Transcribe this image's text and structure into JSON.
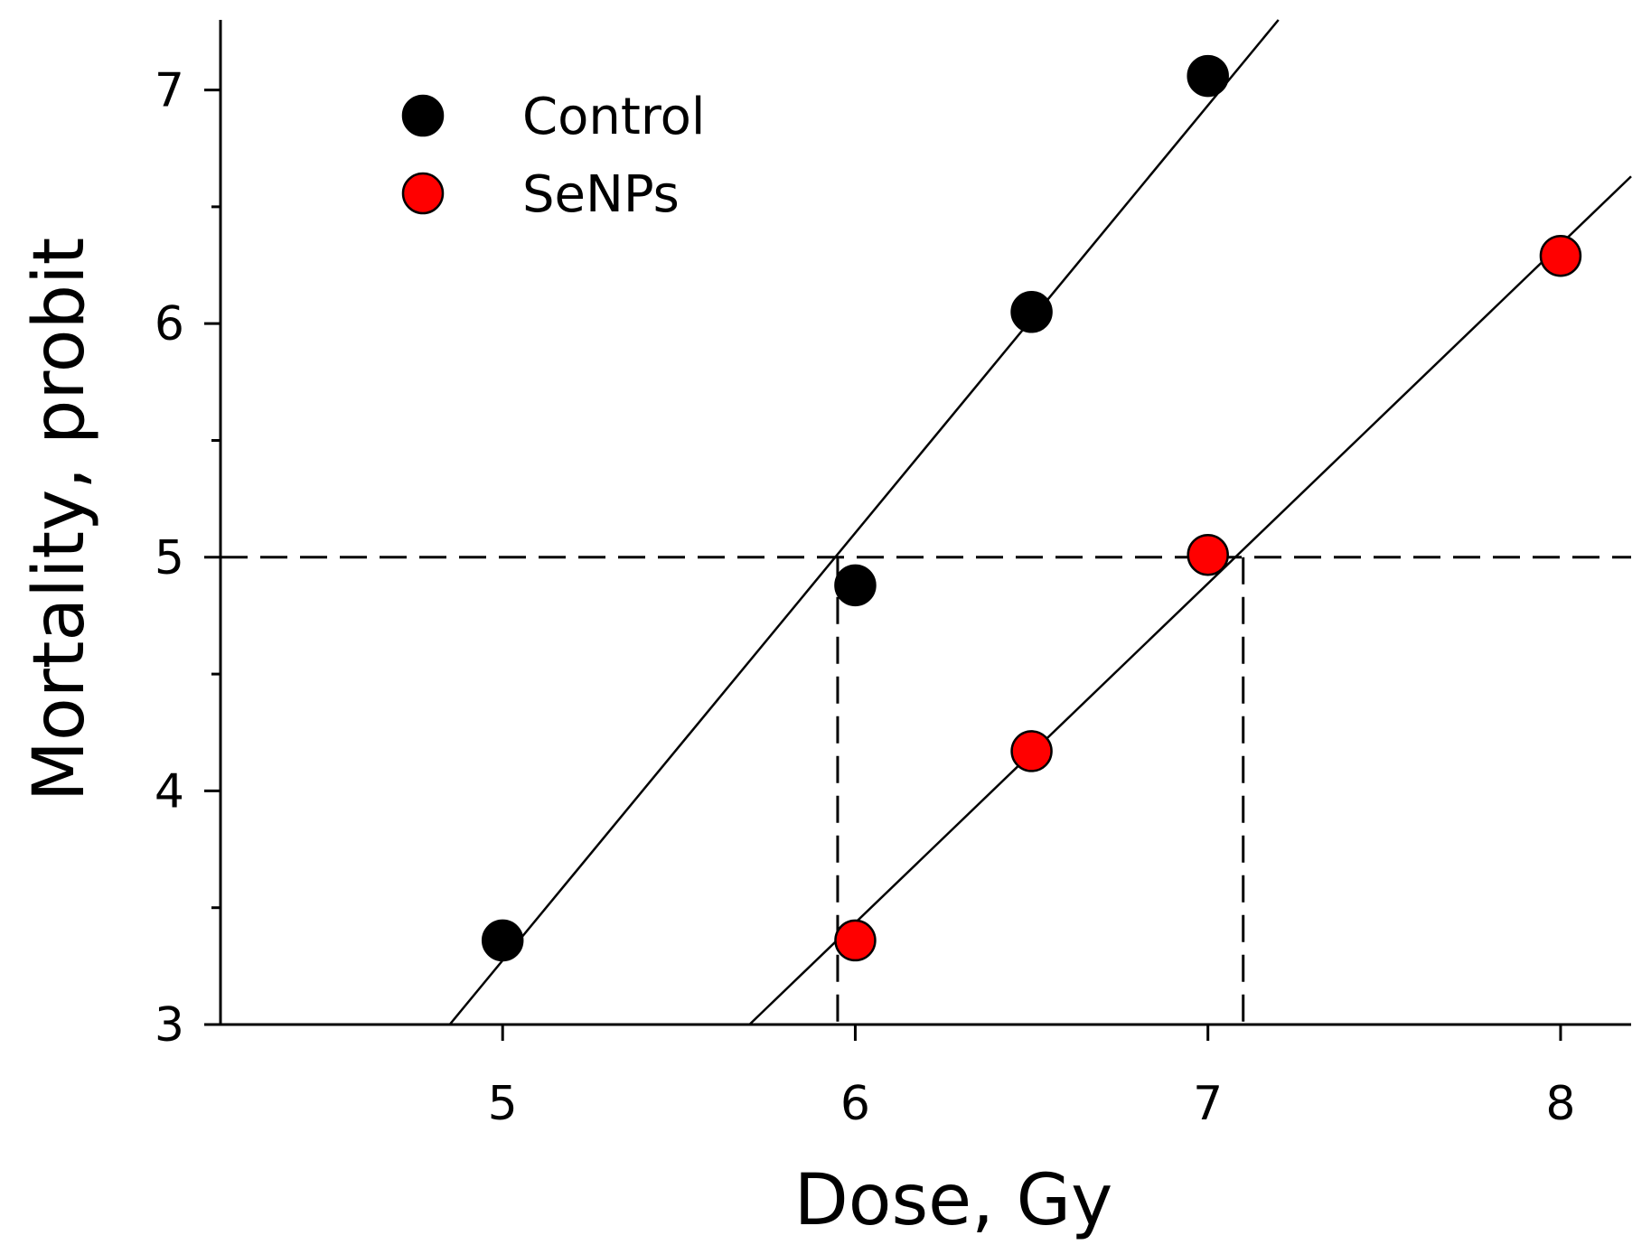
{
  "chart_data": {
    "type": "scatter",
    "title": "",
    "xlabel": "Dose, Gy",
    "ylabel": "Mortality, probit",
    "xlim": [
      4.2,
      8.2
    ],
    "ylim": [
      3,
      7.3
    ],
    "xticks": [
      5,
      6,
      7,
      8
    ],
    "xtick_labels": [
      "5",
      "6",
      "7",
      "8"
    ],
    "yticks": [
      3,
      4,
      5,
      6,
      7
    ],
    "ytick_labels": [
      "3",
      "4",
      "5",
      "6",
      "7"
    ],
    "y_minor_ticks": [
      3.5,
      4.5,
      5.5,
      6.5
    ],
    "grid": false,
    "legend_position": "top-left",
    "series": [
      {
        "name": "Control",
        "color": "#000000",
        "x": [
          5,
          6,
          6.5,
          7
        ],
        "y": [
          3.36,
          4.88,
          6.05,
          7.06
        ],
        "fit": {
          "x": [
            4.85,
            7.2
          ],
          "y": [
            3.0,
            7.3
          ]
        }
      },
      {
        "name": "SeNPs",
        "color": "#ff0000",
        "x": [
          6,
          6.5,
          7,
          8
        ],
        "y": [
          3.36,
          4.17,
          5.01,
          6.29
        ],
        "fit": {
          "x": [
            5.7,
            8.2
          ],
          "y": [
            3.0,
            6.63
          ]
        }
      }
    ],
    "reference_lines": {
      "horizontal_y": 5,
      "ld50": [
        5.95,
        7.1
      ]
    }
  }
}
